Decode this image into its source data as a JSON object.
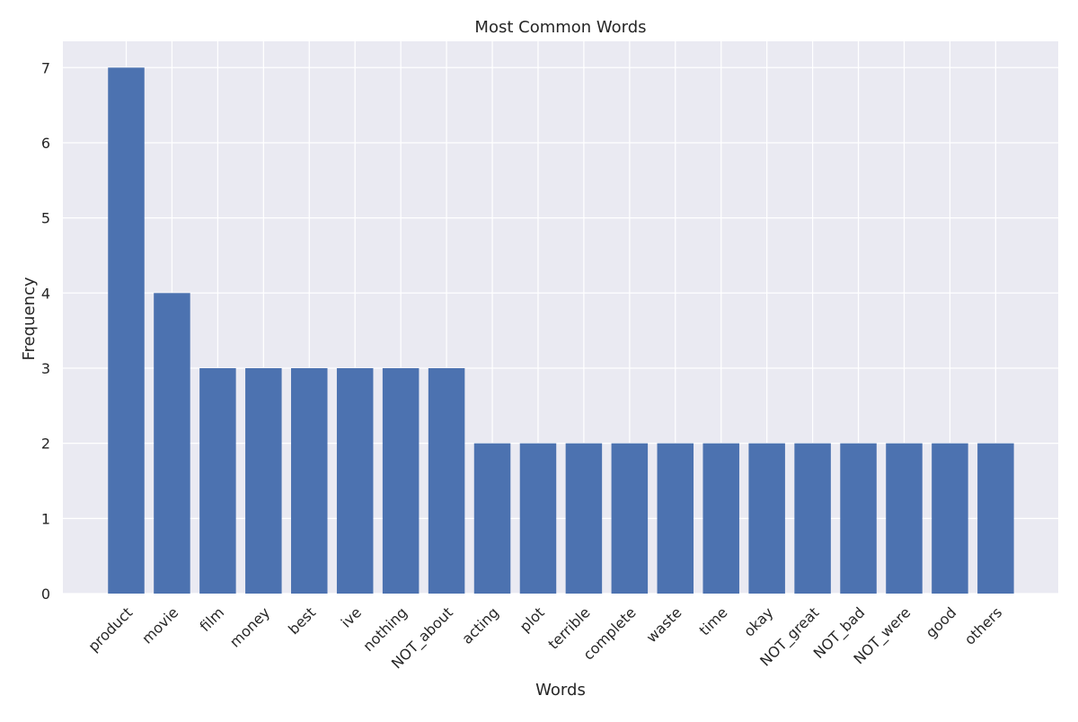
{
  "chart_data": {
    "type": "bar",
    "title": "Most Common Words",
    "xlabel": "Words",
    "ylabel": "Frequency",
    "categories": [
      "product",
      "movie",
      "film",
      "money",
      "best",
      "ive",
      "nothing",
      "NOT_about",
      "acting",
      "plot",
      "terrible",
      "complete",
      "waste",
      "time",
      "okay",
      "NOT_great",
      "NOT_bad",
      "NOT_were",
      "good",
      "others"
    ],
    "values": [
      7,
      4,
      3,
      3,
      3,
      3,
      3,
      3,
      2,
      2,
      2,
      2,
      2,
      2,
      2,
      2,
      2,
      2,
      2,
      2
    ],
    "ylim": [
      0,
      7.35
    ],
    "yticks": [
      0,
      1,
      2,
      3,
      4,
      5,
      6,
      7
    ],
    "grid": true,
    "colors": {
      "bar": "#4c72b0",
      "background": "#eaeaf2",
      "grid": "#ffffff"
    }
  }
}
